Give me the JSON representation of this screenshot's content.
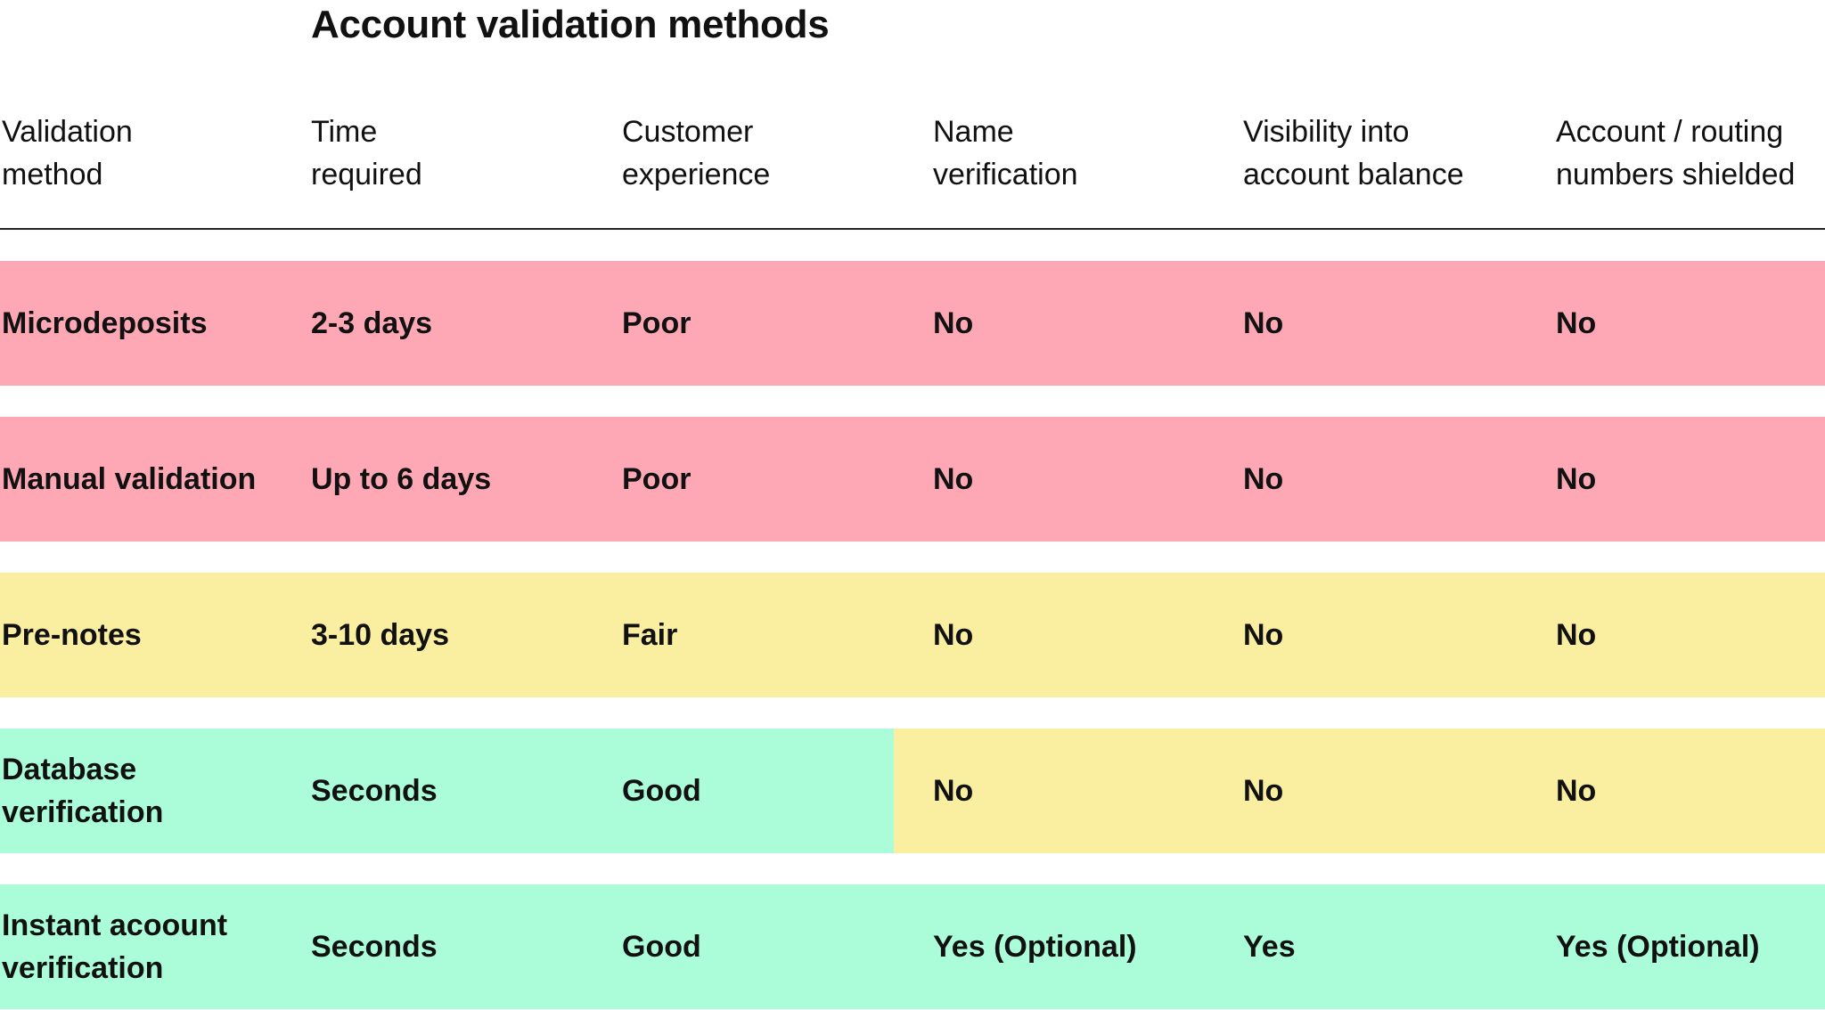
{
  "title": "Account validation methods",
  "colors": {
    "poor": "#fea8b5",
    "fair": "#faefa0",
    "good": "#abfdd9",
    "rule": "#222222",
    "text": "#111111"
  },
  "columns": [
    [
      "Validation",
      "method"
    ],
    [
      "Time",
      "required"
    ],
    [
      "Customer",
      "experience"
    ],
    [
      "Name",
      "verification"
    ],
    [
      "Visibility into",
      "account balance"
    ],
    [
      "Account / routing",
      "numbers shielded"
    ]
  ],
  "rows": [
    {
      "method": [
        "Microdeposits"
      ],
      "time": "2-3 days",
      "experience": "Poor",
      "name_verification": "No",
      "balance_visibility": "No",
      "numbers_shielded": "No",
      "rating_left": "poor",
      "rating_right": "poor"
    },
    {
      "method": [
        "Manual validation"
      ],
      "time": "Up to 6 days",
      "experience": "Poor",
      "name_verification": "No",
      "balance_visibility": "No",
      "numbers_shielded": "No",
      "rating_left": "poor",
      "rating_right": "poor"
    },
    {
      "method": [
        "Pre-notes"
      ],
      "time": "3-10 days",
      "experience": "Fair",
      "name_verification": "No",
      "balance_visibility": "No",
      "numbers_shielded": "No",
      "rating_left": "fair",
      "rating_right": "fair"
    },
    {
      "method": [
        "Database",
        "verification"
      ],
      "time": "Seconds",
      "experience": "Good",
      "name_verification": "No",
      "balance_visibility": "No",
      "numbers_shielded": "No",
      "rating_left": "good",
      "rating_right": "fair"
    },
    {
      "method": [
        "Instant acoount",
        "verification"
      ],
      "time": "Seconds",
      "experience": "Good",
      "name_verification": "Yes (Optional)",
      "balance_visibility": "Yes",
      "numbers_shielded": "Yes (Optional)",
      "rating_left": "good",
      "rating_right": "good"
    }
  ]
}
